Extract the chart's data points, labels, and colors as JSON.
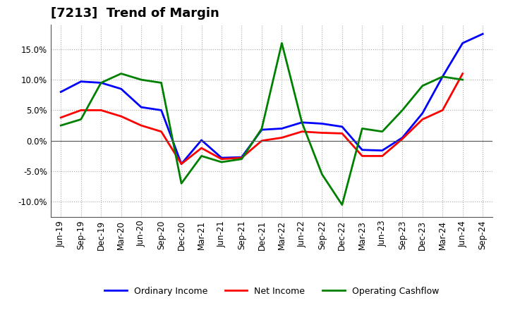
{
  "title": "[7213]  Trend of Margin",
  "x_labels": [
    "Jun-19",
    "Sep-19",
    "Dec-19",
    "Mar-20",
    "Jun-20",
    "Sep-20",
    "Dec-20",
    "Mar-21",
    "Jun-21",
    "Sep-21",
    "Dec-21",
    "Mar-22",
    "Jun-22",
    "Sep-22",
    "Dec-22",
    "Mar-23",
    "Jun-23",
    "Sep-23",
    "Dec-23",
    "Mar-24",
    "Jun-24",
    "Sep-24"
  ],
  "ordinary_income": [
    8.0,
    9.7,
    9.5,
    8.5,
    5.5,
    5.0,
    -3.8,
    0.1,
    -2.8,
    -2.7,
    1.8,
    2.0,
    3.0,
    2.8,
    2.3,
    -1.5,
    -1.6,
    0.5,
    4.5,
    10.5,
    16.0,
    17.5
  ],
  "net_income": [
    3.8,
    5.0,
    5.0,
    4.0,
    2.5,
    1.5,
    -3.8,
    -1.2,
    -3.0,
    -2.8,
    0.0,
    0.5,
    1.5,
    1.3,
    1.2,
    -2.5,
    -2.5,
    0.3,
    3.5,
    5.0,
    11.0,
    null
  ],
  "operating_cashflow": [
    2.5,
    3.5,
    9.5,
    11.0,
    10.0,
    9.5,
    -7.0,
    -2.5,
    -3.5,
    -3.0,
    2.0,
    16.0,
    3.0,
    -5.5,
    -10.5,
    2.0,
    1.5,
    5.0,
    9.0,
    10.5,
    10.0,
    null
  ],
  "ordinary_income_color": "#0000FF",
  "net_income_color": "#FF0000",
  "operating_cashflow_color": "#008000",
  "ylim": [
    -12.5,
    19.0
  ],
  "yticks": [
    -10.0,
    -5.0,
    0.0,
    5.0,
    10.0,
    15.0
  ],
  "ytick_labels": [
    "-10.0%",
    "-5.0%",
    "0.0%",
    "5.0%",
    "10.0%",
    "15.0%"
  ],
  "legend_labels": [
    "Ordinary Income",
    "Net Income",
    "Operating Cashflow"
  ],
  "background_color": "#FFFFFF",
  "grid_color": "#AAAAAA",
  "line_width": 2.0,
  "title_fontsize": 13,
  "tick_fontsize": 8.5,
  "legend_fontsize": 9
}
